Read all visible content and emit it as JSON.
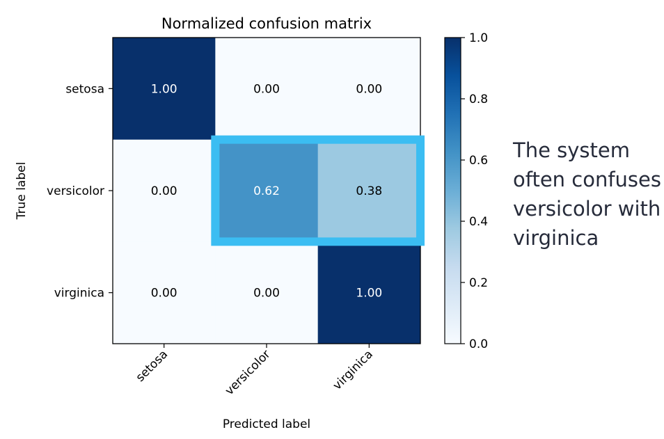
{
  "chart_data": {
    "type": "heatmap",
    "title": "Normalized confusion matrix",
    "xlabel": "Predicted label",
    "ylabel": "True label",
    "row_labels": [
      "setosa",
      "versicolor",
      "virginica"
    ],
    "col_labels": [
      "setosa",
      "versicolor",
      "virginica"
    ],
    "values": [
      [
        1.0,
        0.0,
        0.0
      ],
      [
        0.0,
        0.62,
        0.38
      ],
      [
        0.0,
        0.0,
        1.0
      ]
    ],
    "cell_labels": [
      [
        "1.00",
        "0.00",
        "0.00"
      ],
      [
        "0.00",
        "0.62",
        "0.38"
      ],
      [
        "0.00",
        "0.00",
        "1.00"
      ]
    ],
    "colormap": "Blues",
    "colorbar": {
      "range": [
        0.0,
        1.0
      ],
      "ticks": [
        "0.0",
        "0.2",
        "0.4",
        "0.6",
        "0.8",
        "1.0"
      ]
    },
    "highlight": {
      "row": 1,
      "cols": [
        1,
        2
      ],
      "color": "#3bbdf2"
    }
  },
  "annotation": "The system often confuses versicolor with virginica"
}
